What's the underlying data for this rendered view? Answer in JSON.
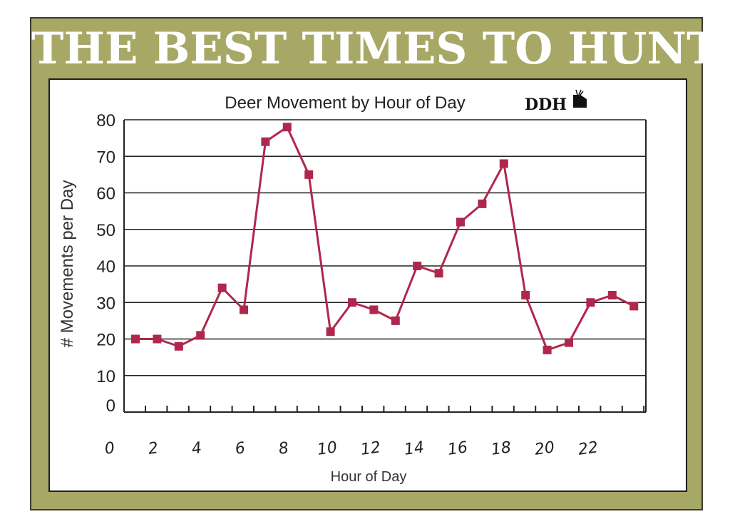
{
  "banner": {
    "title": "THE BEST TIMES TO HUNT",
    "background_color": "#a8a866",
    "text_color": "#ffffff"
  },
  "chart_data": {
    "type": "line",
    "title": "Deer Movement by Hour of Day",
    "logo_text": "DDH",
    "xlabel": "Hour of Day",
    "ylabel": "# Movements per Day",
    "x_tick_labels": [
      "0",
      "2",
      "4",
      "6",
      "8",
      "10",
      "12",
      "14",
      "16",
      "18",
      "20",
      "22"
    ],
    "y_tick_labels": [
      "0",
      "10",
      "20",
      "30",
      "40",
      "50",
      "60",
      "70",
      "80"
    ],
    "ylim": [
      0,
      80
    ],
    "grid": "horizontal",
    "line_color": "#b0274e",
    "series": [
      {
        "x": [
          0,
          1,
          2,
          3,
          4,
          5,
          6,
          7,
          8,
          9,
          10,
          11,
          12,
          13,
          14,
          15,
          16,
          17,
          18,
          19,
          20,
          21,
          22,
          23
        ],
        "values": [
          20,
          20,
          18,
          21,
          34,
          28,
          74,
          78,
          65,
          22,
          30,
          28,
          25,
          40,
          38,
          52,
          57,
          68,
          32,
          17,
          19,
          30,
          32,
          29
        ]
      }
    ]
  }
}
